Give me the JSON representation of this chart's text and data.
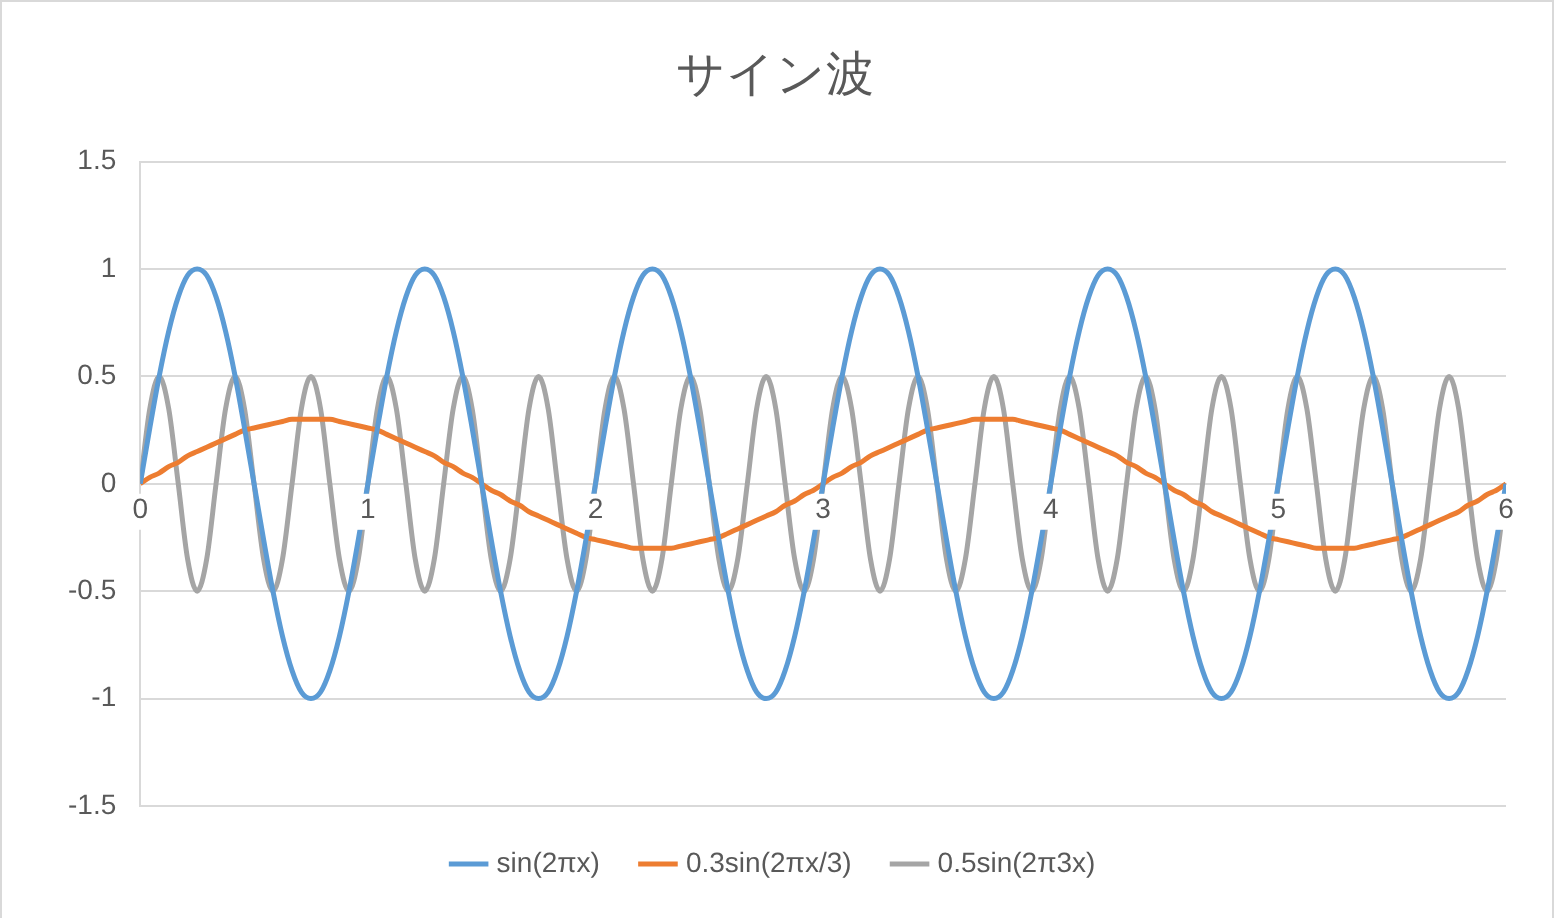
{
  "chart_data": {
    "type": "line",
    "title": "サイン波",
    "legend": "bottom",
    "grid": "y",
    "xlim": [
      0,
      6
    ],
    "xticks": [
      0,
      1,
      2,
      3,
      4,
      5,
      6
    ],
    "ylim": [
      -1.5,
      1.5
    ],
    "yticks": [
      -1.5,
      -1,
      -0.5,
      0,
      0.5,
      1,
      1.5
    ],
    "x": [
      0,
      0.042,
      0.083,
      0.125,
      0.167,
      0.208,
      0.25,
      0.292,
      0.333,
      0.375,
      0.417,
      0.458,
      0.5,
      0.542,
      0.583,
      0.625,
      0.667,
      0.708,
      0.75,
      0.792,
      0.833,
      0.875,
      0.917,
      0.958,
      1,
      1.042,
      1.083,
      1.125,
      1.167,
      1.208,
      1.25,
      1.292,
      1.333,
      1.375,
      1.417,
      1.458,
      1.5,
      1.542,
      1.583,
      1.625,
      1.667,
      1.708,
      1.75,
      1.792,
      1.833,
      1.875,
      1.917,
      1.958,
      2,
      2.042,
      2.083,
      2.125,
      2.167,
      2.208,
      2.25,
      2.292,
      2.333,
      2.375,
      2.417,
      2.458,
      2.5,
      2.542,
      2.583,
      2.625,
      2.667,
      2.708,
      2.75,
      2.792,
      2.833,
      2.875,
      2.917,
      2.958,
      3,
      3.042,
      3.083,
      3.125,
      3.167,
      3.208,
      3.25,
      3.292,
      3.333,
      3.375,
      3.417,
      3.458,
      3.5,
      3.542,
      3.583,
      3.625,
      3.667,
      3.708,
      3.75,
      3.792,
      3.833,
      3.875,
      3.917,
      3.958,
      4,
      4.042,
      4.083,
      4.125,
      4.167,
      4.208,
      4.25,
      4.292,
      4.333,
      4.375,
      4.417,
      4.458,
      4.5,
      4.542,
      4.583,
      4.625,
      4.667,
      4.708,
      4.75,
      4.792,
      4.833,
      4.875,
      4.917,
      4.958,
      5,
      5.042,
      5.083,
      5.125,
      5.167,
      5.208,
      5.25,
      5.292,
      5.333,
      5.375,
      5.417,
      5.458,
      5.5,
      5.542,
      5.583,
      5.625,
      5.667,
      5.708,
      5.75,
      5.792,
      5.833,
      5.875,
      5.917,
      5.958,
      6
    ],
    "series": [
      {
        "name": "sin(2πx)",
        "color": "#5b9bd5",
        "values": [
          0,
          0.26,
          0.5,
          0.71,
          0.87,
          0.97,
          1,
          0.97,
          0.87,
          0.71,
          0.5,
          0.26,
          0,
          -0.26,
          -0.5,
          -0.71,
          -0.87,
          -0.97,
          -1,
          -0.97,
          -0.87,
          -0.71,
          -0.5,
          -0.26,
          0,
          0.26,
          0.5,
          0.71,
          0.87,
          0.97,
          1,
          0.97,
          0.87,
          0.71,
          0.5,
          0.26,
          0,
          -0.26,
          -0.5,
          -0.71,
          -0.87,
          -0.97,
          -1,
          -0.97,
          -0.87,
          -0.71,
          -0.5,
          -0.26,
          0,
          0.26,
          0.5,
          0.71,
          0.87,
          0.97,
          1,
          0.97,
          0.87,
          0.71,
          0.5,
          0.26,
          0,
          -0.26,
          -0.5,
          -0.71,
          -0.87,
          -0.97,
          -1,
          -0.97,
          -0.87,
          -0.71,
          -0.5,
          -0.26,
          0,
          0.26,
          0.5,
          0.71,
          0.87,
          0.97,
          1,
          0.97,
          0.87,
          0.71,
          0.5,
          0.26,
          0,
          -0.26,
          -0.5,
          -0.71,
          -0.87,
          -0.97,
          -1,
          -0.97,
          -0.87,
          -0.71,
          -0.5,
          -0.26,
          0,
          0.26,
          0.5,
          0.71,
          0.87,
          0.97,
          1,
          0.97,
          0.87,
          0.71,
          0.5,
          0.26,
          0,
          -0.26,
          -0.5,
          -0.71,
          -0.87,
          -0.97,
          -1,
          -0.97,
          -0.87,
          -0.71,
          -0.5,
          -0.26,
          0,
          0.26,
          0.5,
          0.71,
          0.87,
          0.97,
          1,
          0.97,
          0.87,
          0.71,
          0.5,
          0.26,
          0,
          -0.26,
          -0.5,
          -0.71,
          -0.87,
          -0.97,
          -1,
          -0.97,
          -0.87,
          -0.71,
          -0.5,
          -0.26,
          0
        ]
      },
      {
        "name": "0.3sin(2πx/3)",
        "color": "#ed7d31",
        "values": [
          0,
          0.03,
          0.05,
          0.08,
          0.1,
          0.13,
          0.15,
          0.17,
          0.19,
          0.21,
          0.23,
          0.25,
          0.26,
          0.27,
          0.28,
          0.29,
          0.3,
          0.3,
          0.3,
          0.3,
          0.3,
          0.29,
          0.28,
          0.27,
          0.26,
          0.25,
          0.23,
          0.21,
          0.19,
          0.17,
          0.15,
          0.13,
          0.1,
          0.08,
          0.05,
          0.03,
          0,
          -0.03,
          -0.05,
          -0.08,
          -0.1,
          -0.13,
          -0.15,
          -0.17,
          -0.19,
          -0.21,
          -0.23,
          -0.25,
          -0.26,
          -0.27,
          -0.28,
          -0.29,
          -0.3,
          -0.3,
          -0.3,
          -0.3,
          -0.3,
          -0.29,
          -0.28,
          -0.27,
          -0.26,
          -0.25,
          -0.23,
          -0.21,
          -0.19,
          -0.17,
          -0.15,
          -0.13,
          -0.1,
          -0.08,
          -0.05,
          -0.03,
          0,
          0.03,
          0.05,
          0.08,
          0.1,
          0.13,
          0.15,
          0.17,
          0.19,
          0.21,
          0.23,
          0.25,
          0.26,
          0.27,
          0.28,
          0.29,
          0.3,
          0.3,
          0.3,
          0.3,
          0.3,
          0.29,
          0.28,
          0.27,
          0.26,
          0.25,
          0.23,
          0.21,
          0.19,
          0.17,
          0.15,
          0.13,
          0.1,
          0.08,
          0.05,
          0.03,
          0,
          -0.03,
          -0.05,
          -0.08,
          -0.1,
          -0.13,
          -0.15,
          -0.17,
          -0.19,
          -0.21,
          -0.23,
          -0.25,
          -0.26,
          -0.27,
          -0.28,
          -0.29,
          -0.3,
          -0.3,
          -0.3,
          -0.3,
          -0.3,
          -0.29,
          -0.28,
          -0.27,
          -0.26,
          -0.25,
          -0.23,
          -0.21,
          -0.19,
          -0.17,
          -0.15,
          -0.13,
          -0.1,
          -0.08,
          -0.05,
          -0.03,
          0
        ]
      },
      {
        "name": "0.5sin(2π3x)",
        "color": "#a5a5a5",
        "values": [
          0,
          0.35,
          0.5,
          0.35,
          0,
          -0.35,
          -0.5,
          -0.35,
          0,
          0.35,
          0.5,
          0.35,
          0,
          -0.35,
          -0.5,
          -0.35,
          0,
          0.35,
          0.5,
          0.35,
          0,
          -0.35,
          -0.5,
          -0.35,
          0,
          0.35,
          0.5,
          0.35,
          0,
          -0.35,
          -0.5,
          -0.35,
          0,
          0.35,
          0.5,
          0.35,
          0,
          -0.35,
          -0.5,
          -0.35,
          0,
          0.35,
          0.5,
          0.35,
          0,
          -0.35,
          -0.5,
          -0.35,
          0,
          0.35,
          0.5,
          0.35,
          0,
          -0.35,
          -0.5,
          -0.35,
          0,
          0.35,
          0.5,
          0.35,
          0,
          -0.35,
          -0.5,
          -0.35,
          0,
          0.35,
          0.5,
          0.35,
          0,
          -0.35,
          -0.5,
          -0.35,
          0,
          0.35,
          0.5,
          0.35,
          0,
          -0.35,
          -0.5,
          -0.35,
          0,
          0.35,
          0.5,
          0.35,
          0,
          -0.35,
          -0.5,
          -0.35,
          0,
          0.35,
          0.5,
          0.35,
          0,
          -0.35,
          -0.5,
          -0.35,
          0,
          0.35,
          0.5,
          0.35,
          0,
          -0.35,
          -0.5,
          -0.35,
          0,
          0.35,
          0.5,
          0.35,
          0,
          -0.35,
          -0.5,
          -0.35,
          0,
          0.35,
          0.5,
          0.35,
          0,
          -0.35,
          -0.5,
          -0.35,
          0,
          0.35,
          0.5,
          0.35,
          0,
          -0.35,
          -0.5,
          -0.35,
          0,
          0.35,
          0.5,
          0.35,
          0,
          -0.35,
          -0.5,
          -0.35,
          0,
          0.35,
          0.5,
          0.35,
          0,
          -0.35,
          -0.5,
          -0.35,
          0
        ]
      }
    ]
  }
}
